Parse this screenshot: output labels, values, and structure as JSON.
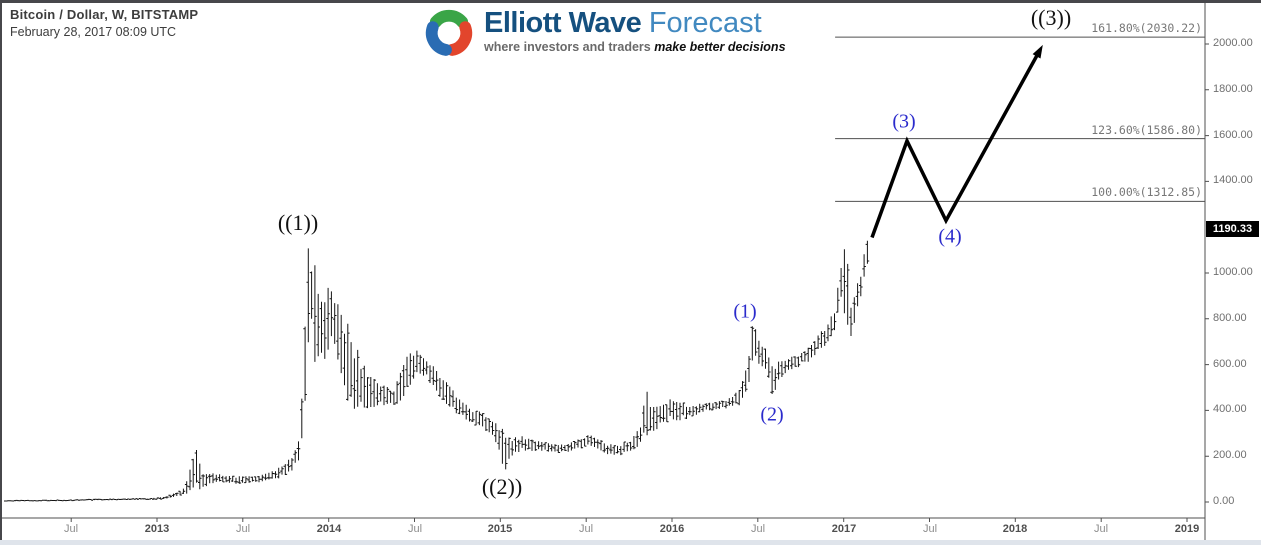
{
  "header": {
    "symbol_line": "Bitcoin / Dollar, W, BITSTAMP",
    "datetime_line": "February 28, 2017 08:09 UTC"
  },
  "logo": {
    "brand_bold": "Elliott Wave",
    "brand_light": "Forecast",
    "tagline_gray": "where investors and traders",
    "tagline_black": "make better decisions",
    "brand_bold_color": "#15507f",
    "brand_light_color": "#4189c0",
    "icon_colors": {
      "blue": "#2a6cb3",
      "green": "#3aa547",
      "red": "#e2452c"
    }
  },
  "chart_data": {
    "type": "bar",
    "subtype": "weekly-high-low-bars",
    "symbol": "Bitcoin / Dollar",
    "timeframe": "W",
    "exchange": "BITSTAMP",
    "bar_color": "#141414",
    "grid": false,
    "x_axis": {
      "range_years": [
        2012.08,
        2019.32
      ],
      "ticks": [
        {
          "t": 2012.5,
          "label": "Jul",
          "bold": false
        },
        {
          "t": 2013.0,
          "label": "2013",
          "bold": true
        },
        {
          "t": 2013.5,
          "label": "Jul",
          "bold": false
        },
        {
          "t": 2014.0,
          "label": "2014",
          "bold": true
        },
        {
          "t": 2014.5,
          "label": "Jul",
          "bold": false
        },
        {
          "t": 2015.0,
          "label": "2015",
          "bold": true
        },
        {
          "t": 2015.5,
          "label": "Jul",
          "bold": false
        },
        {
          "t": 2016.0,
          "label": "2016",
          "bold": true
        },
        {
          "t": 2016.5,
          "label": "Jul",
          "bold": false
        },
        {
          "t": 2017.0,
          "label": "2017",
          "bold": true
        },
        {
          "t": 2017.5,
          "label": "Jul",
          "bold": false
        },
        {
          "t": 2018.0,
          "label": "2018",
          "bold": true
        },
        {
          "t": 2018.5,
          "label": "Jul",
          "bold": false
        },
        {
          "t": 2019.0,
          "label": "2019",
          "bold": true
        }
      ]
    },
    "y_axis": {
      "range_price": [
        -70,
        2175
      ],
      "label_color": "#6f6f6f",
      "ticks": [
        {
          "price": 0,
          "label": "0.00"
        },
        {
          "price": 200,
          "label": "200.00"
        },
        {
          "price": 400,
          "label": "400.00"
        },
        {
          "price": 600,
          "label": "600.00"
        },
        {
          "price": 800,
          "label": "800.00"
        },
        {
          "price": 1000,
          "label": "1000.00"
        },
        {
          "price": 1400,
          "label": "1400.00"
        },
        {
          "price": 1600,
          "label": "1600.00"
        },
        {
          "price": 1800,
          "label": "1800.00"
        },
        {
          "price": 2000,
          "label": "2000.00"
        }
      ]
    },
    "weekly_bar_anchors_t_mid_range": [
      [
        2012.1,
        5,
        3
      ],
      [
        2012.45,
        7,
        3
      ],
      [
        2012.7,
        11,
        4
      ],
      [
        2012.95,
        13,
        4
      ],
      [
        2013.05,
        18,
        8
      ],
      [
        2013.16,
        45,
        25
      ],
      [
        2013.225,
        150,
        170
      ],
      [
        2013.26,
        95,
        60
      ],
      [
        2013.35,
        105,
        30
      ],
      [
        2013.5,
        95,
        25
      ],
      [
        2013.6,
        100,
        25
      ],
      [
        2013.7,
        125,
        35
      ],
      [
        2013.78,
        165,
        50
      ],
      [
        2013.83,
        240,
        90
      ],
      [
        2013.855,
        450,
        280
      ],
      [
        2013.875,
        910,
        480
      ],
      [
        2013.9,
        900,
        280
      ],
      [
        2013.93,
        760,
        380
      ],
      [
        2013.97,
        740,
        260
      ],
      [
        2014.02,
        830,
        190
      ],
      [
        2014.08,
        680,
        260
      ],
      [
        2014.13,
        560,
        280
      ],
      [
        2014.2,
        500,
        160
      ],
      [
        2014.3,
        465,
        90
      ],
      [
        2014.38,
        450,
        60
      ],
      [
        2014.46,
        570,
        150
      ],
      [
        2014.52,
        615,
        80
      ],
      [
        2014.6,
        560,
        80
      ],
      [
        2014.7,
        460,
        80
      ],
      [
        2014.8,
        390,
        60
      ],
      [
        2014.9,
        355,
        50
      ],
      [
        2014.98,
        300,
        70
      ],
      [
        2015.025,
        210,
        140
      ],
      [
        2015.07,
        245,
        70
      ],
      [
        2015.15,
        255,
        45
      ],
      [
        2015.25,
        240,
        35
      ],
      [
        2015.35,
        235,
        30
      ],
      [
        2015.45,
        250,
        35
      ],
      [
        2015.52,
        270,
        40
      ],
      [
        2015.6,
        240,
        40
      ],
      [
        2015.68,
        225,
        35
      ],
      [
        2015.76,
        245,
        45
      ],
      [
        2015.82,
        300,
        80
      ],
      [
        2015.845,
        400,
        180
      ],
      [
        2015.88,
        350,
        90
      ],
      [
        2015.95,
        400,
        80
      ],
      [
        2016.02,
        400,
        80
      ],
      [
        2016.1,
        395,
        45
      ],
      [
        2016.2,
        415,
        30
      ],
      [
        2016.3,
        425,
        30
      ],
      [
        2016.4,
        455,
        60
      ],
      [
        2016.445,
        570,
        140
      ],
      [
        2016.47,
        700,
        160
      ],
      [
        2016.51,
        660,
        110
      ],
      [
        2016.55,
        620,
        90
      ],
      [
        2016.585,
        520,
        110
      ],
      [
        2016.63,
        585,
        60
      ],
      [
        2016.72,
        615,
        45
      ],
      [
        2016.8,
        645,
        50
      ],
      [
        2016.88,
        715,
        60
      ],
      [
        2016.95,
        800,
        90
      ],
      [
        2016.99,
        960,
        140
      ],
      [
        2017.015,
        965,
        350
      ],
      [
        2017.04,
        800,
        150
      ],
      [
        2017.07,
        875,
        90
      ],
      [
        2017.1,
        950,
        90
      ],
      [
        2017.125,
        1040,
        100
      ],
      [
        2017.15,
        1140,
        130
      ]
    ],
    "bars_time_span": [
      2012.1,
      2017.156
    ],
    "bars_per_year": 52.2,
    "fib_extension_levels": [
      {
        "label": "100.00%(1312.85)",
        "price": 1312.85
      },
      {
        "label": "123.60%(1586.80)",
        "price": 1586.8
      },
      {
        "label": "161.80%(2030.22)",
        "price": 2030.22
      }
    ],
    "fib_line_start_t": 2016.95,
    "fib_line_color": "#4f4f4f",
    "fib_label_color": "#777777",
    "elliott_wave_labels": [
      {
        "text": "((1))",
        "t": 2013.82,
        "price": 1220,
        "degree": "primary"
      },
      {
        "text": "((2))",
        "t": 2015.01,
        "price": 65,
        "degree": "primary"
      },
      {
        "text": "((3))",
        "t": 2018.21,
        "price": 2113,
        "degree": "primary"
      },
      {
        "text": "(1)",
        "t": 2016.425,
        "price": 828,
        "degree": "intermediate"
      },
      {
        "text": "(2)",
        "t": 2016.58,
        "price": 379,
        "degree": "intermediate"
      },
      {
        "text": "(3)",
        "t": 2017.35,
        "price": 1660,
        "degree": "intermediate"
      },
      {
        "text": "(4)",
        "t": 2017.62,
        "price": 1159,
        "degree": "intermediate"
      }
    ],
    "wave_label_colors": {
      "primary": "#111111",
      "intermediate": "#2b2bcc"
    },
    "projection_path": {
      "points_t_price": [
        [
          2017.165,
          1155
        ],
        [
          2017.369,
          1577
        ],
        [
          2017.596,
          1229
        ],
        [
          2018.16,
          1996
        ]
      ],
      "color": "#000000",
      "width": 3.5
    },
    "last_price": {
      "text": "1190.33",
      "price": 1190.33,
      "badge_bg": "#000000",
      "badge_fg": "#ffffff"
    },
    "axis_line_color": "#4f4f4f"
  }
}
